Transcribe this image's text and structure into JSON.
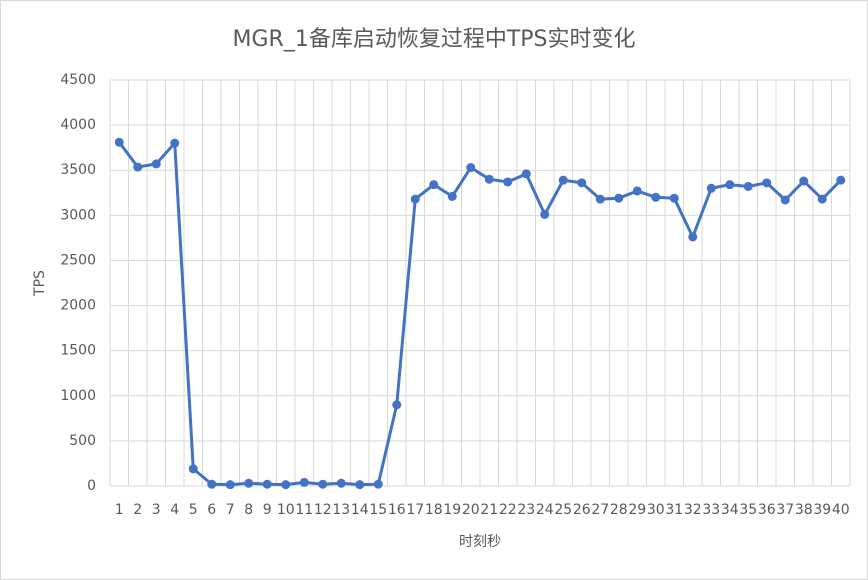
{
  "chart_data": {
    "type": "line",
    "title": "MGR_1备库启动恢复过程中TPS实时变化",
    "x_label": "时刻秒",
    "y_label": "TPS",
    "categories": [
      "1",
      "2",
      "3",
      "4",
      "5",
      "6",
      "7",
      "8",
      "9",
      "10",
      "11",
      "12",
      "13",
      "14",
      "15",
      "16",
      "17",
      "18",
      "19",
      "20",
      "21",
      "22",
      "23",
      "24",
      "25",
      "26",
      "27",
      "28",
      "29",
      "30",
      "31",
      "32",
      "33",
      "34",
      "35",
      "36",
      "37",
      "38",
      "39",
      "40"
    ],
    "values": [
      3810,
      3535,
      3570,
      3800,
      190,
      20,
      15,
      30,
      20,
      15,
      40,
      20,
      30,
      15,
      20,
      900,
      3180,
      3340,
      3210,
      3530,
      3400,
      3370,
      3460,
      3010,
      3390,
      3360,
      3180,
      3190,
      3270,
      3200,
      3190,
      2760,
      3300,
      3340,
      3320,
      3360,
      3170,
      3380,
      3180,
      3390
    ],
    "color": "#4472c4",
    "ylim": [
      0,
      4500
    ],
    "yticks": [
      0,
      500,
      1000,
      1500,
      2000,
      2500,
      3000,
      3500,
      4000,
      4500
    ],
    "grid": true
  }
}
